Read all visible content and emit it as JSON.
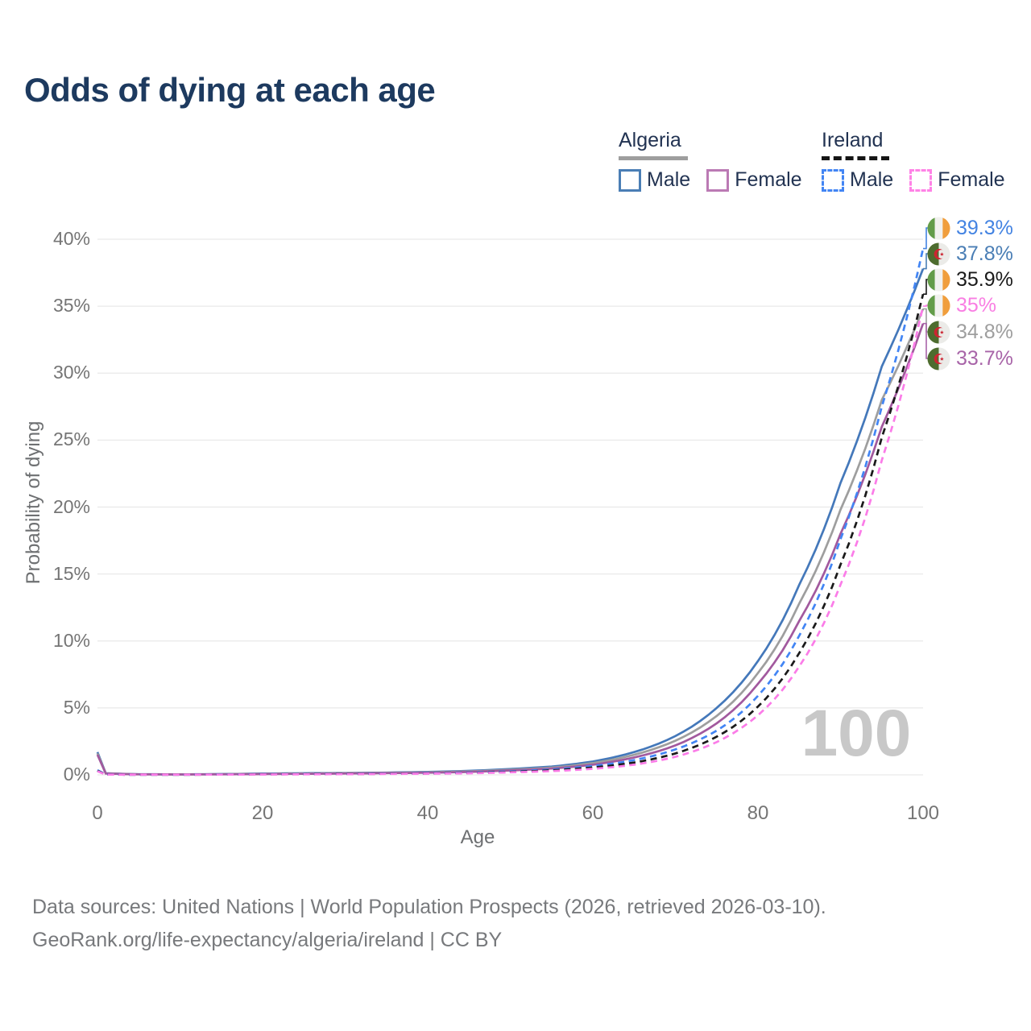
{
  "title": "Odds of dying at each age",
  "legend": {
    "groups": [
      {
        "country": "Algeria",
        "underline_style": "solid",
        "underline_color": "#9e9e9e",
        "items": [
          {
            "label": "Male",
            "color": "#4a7eb5",
            "style": "solid"
          },
          {
            "label": "Female",
            "color": "#bb7ab4",
            "style": "solid"
          }
        ]
      },
      {
        "country": "Ireland",
        "underline_style": "dashed",
        "underline_color": "#151515",
        "items": [
          {
            "label": "Male",
            "color": "#4285f4",
            "style": "dashed"
          },
          {
            "label": "Female",
            "color": "#ff82e6",
            "style": "dashed"
          }
        ]
      }
    ]
  },
  "chart_data": {
    "type": "line",
    "title": "Odds of dying at each age",
    "xlabel": "Age",
    "ylabel": "Probability of dying",
    "xlim": [
      0,
      100
    ],
    "ylim": [
      0,
      40
    ],
    "x_ticks": [
      0,
      20,
      40,
      60,
      80,
      100
    ],
    "y_ticks": [
      {
        "value": 0,
        "label": "0%"
      },
      {
        "value": 5,
        "label": "5%"
      },
      {
        "value": 10,
        "label": "10%"
      },
      {
        "value": 15,
        "label": "15%"
      },
      {
        "value": 20,
        "label": "20%"
      },
      {
        "value": 25,
        "label": "25%"
      },
      {
        "value": 30,
        "label": "30%"
      },
      {
        "value": 35,
        "label": "35%"
      },
      {
        "value": 40,
        "label": "40%"
      }
    ],
    "grid": "horizontal",
    "age_annotation": "100",
    "series": [
      {
        "name": "Algeria Male",
        "country": "algeria",
        "sex": "male",
        "style": "solid",
        "color": "#4478ba",
        "label_color": "#4a7eb5",
        "end_value": 37.8,
        "end_label": "37.8%",
        "points": [
          [
            0,
            1.7
          ],
          [
            1,
            0.12
          ],
          [
            5,
            0.05
          ],
          [
            10,
            0.04
          ],
          [
            15,
            0.06
          ],
          [
            20,
            0.1
          ],
          [
            25,
            0.12
          ],
          [
            30,
            0.14
          ],
          [
            35,
            0.17
          ],
          [
            40,
            0.22
          ],
          [
            45,
            0.3
          ],
          [
            50,
            0.44
          ],
          [
            55,
            0.62
          ],
          [
            60,
            1.0
          ],
          [
            65,
            1.7
          ],
          [
            70,
            2.9
          ],
          [
            75,
            5.0
          ],
          [
            80,
            8.5
          ],
          [
            85,
            14.2
          ],
          [
            90,
            21.8
          ],
          [
            95,
            30.5
          ],
          [
            100,
            37.8
          ]
        ]
      },
      {
        "name": "Algeria",
        "country": "algeria",
        "sex": "both",
        "style": "solid",
        "color": "#9e9e9e",
        "label_color": "#9e9e9e",
        "end_value": 34.8,
        "end_label": "34.8%",
        "points": [
          [
            0,
            1.6
          ],
          [
            1,
            0.11
          ],
          [
            5,
            0.045
          ],
          [
            10,
            0.035
          ],
          [
            15,
            0.05
          ],
          [
            20,
            0.08
          ],
          [
            25,
            0.1
          ],
          [
            30,
            0.12
          ],
          [
            35,
            0.15
          ],
          [
            40,
            0.19
          ],
          [
            45,
            0.26
          ],
          [
            50,
            0.38
          ],
          [
            55,
            0.54
          ],
          [
            60,
            0.88
          ],
          [
            65,
            1.5
          ],
          [
            70,
            2.55
          ],
          [
            75,
            4.4
          ],
          [
            80,
            7.6
          ],
          [
            85,
            12.8
          ],
          [
            90,
            19.8
          ],
          [
            95,
            28.0
          ],
          [
            100,
            34.8
          ]
        ]
      },
      {
        "name": "Algeria Female",
        "country": "algeria",
        "sex": "female",
        "style": "solid",
        "color": "#a2599e",
        "label_color": "#a864a8",
        "end_value": 33.7,
        "end_label": "33.7%",
        "points": [
          [
            0,
            1.5
          ],
          [
            1,
            0.1
          ],
          [
            5,
            0.04
          ],
          [
            10,
            0.03
          ],
          [
            15,
            0.04
          ],
          [
            20,
            0.06
          ],
          [
            25,
            0.08
          ],
          [
            30,
            0.1
          ],
          [
            35,
            0.13
          ],
          [
            40,
            0.16
          ],
          [
            45,
            0.22
          ],
          [
            50,
            0.33
          ],
          [
            55,
            0.47
          ],
          [
            60,
            0.76
          ],
          [
            65,
            1.3
          ],
          [
            70,
            2.2
          ],
          [
            75,
            3.85
          ],
          [
            80,
            6.8
          ],
          [
            85,
            11.5
          ],
          [
            90,
            18.0
          ],
          [
            95,
            26.0
          ],
          [
            100,
            33.7
          ]
        ]
      },
      {
        "name": "Ireland Male",
        "country": "ireland",
        "sex": "male",
        "style": "dashed",
        "color": "#4285f4",
        "label_color": "#4383e2",
        "end_value": 39.3,
        "end_label": "39.3%",
        "points": [
          [
            0,
            0.35
          ],
          [
            1,
            0.03
          ],
          [
            5,
            0.01
          ],
          [
            10,
            0.01
          ],
          [
            15,
            0.03
          ],
          [
            20,
            0.05
          ],
          [
            25,
            0.06
          ],
          [
            30,
            0.07
          ],
          [
            35,
            0.09
          ],
          [
            40,
            0.12
          ],
          [
            45,
            0.17
          ],
          [
            50,
            0.26
          ],
          [
            55,
            0.4
          ],
          [
            60,
            0.66
          ],
          [
            65,
            1.1
          ],
          [
            70,
            1.9
          ],
          [
            75,
            3.3
          ],
          [
            80,
            5.9
          ],
          [
            85,
            10.4
          ],
          [
            90,
            17.6
          ],
          [
            95,
            27.5
          ],
          [
            100,
            39.3
          ]
        ]
      },
      {
        "name": "Ireland",
        "country": "ireland",
        "sex": "both",
        "style": "dashed",
        "color": "#1a1a1a",
        "label_color": "#1a1a1a",
        "end_value": 35.9,
        "end_label": "35.9%",
        "points": [
          [
            0,
            0.3
          ],
          [
            1,
            0.025
          ],
          [
            5,
            0.01
          ],
          [
            10,
            0.01
          ],
          [
            15,
            0.02
          ],
          [
            20,
            0.04
          ],
          [
            25,
            0.05
          ],
          [
            30,
            0.06
          ],
          [
            35,
            0.08
          ],
          [
            40,
            0.1
          ],
          [
            45,
            0.14
          ],
          [
            50,
            0.22
          ],
          [
            55,
            0.34
          ],
          [
            60,
            0.55
          ],
          [
            65,
            0.92
          ],
          [
            70,
            1.6
          ],
          [
            75,
            2.85
          ],
          [
            80,
            5.1
          ],
          [
            85,
            9.1
          ],
          [
            90,
            15.7
          ],
          [
            95,
            25.2
          ],
          [
            100,
            35.9
          ]
        ]
      },
      {
        "name": "Ireland Female",
        "country": "ireland",
        "sex": "female",
        "style": "dashed",
        "color": "#fb7ce8",
        "label_color": "#f97ee3",
        "end_value": 35.0,
        "end_label": "35%",
        "points": [
          [
            0,
            0.27
          ],
          [
            1,
            0.02
          ],
          [
            5,
            0.01
          ],
          [
            10,
            0.01
          ],
          [
            15,
            0.02
          ],
          [
            20,
            0.03
          ],
          [
            25,
            0.04
          ],
          [
            30,
            0.05
          ],
          [
            35,
            0.07
          ],
          [
            40,
            0.09
          ],
          [
            45,
            0.12
          ],
          [
            50,
            0.19
          ],
          [
            55,
            0.28
          ],
          [
            60,
            0.45
          ],
          [
            65,
            0.76
          ],
          [
            70,
            1.35
          ],
          [
            75,
            2.45
          ],
          [
            80,
            4.45
          ],
          [
            85,
            8.1
          ],
          [
            90,
            14.2
          ],
          [
            95,
            23.5
          ],
          [
            100,
            35.0
          ]
        ]
      }
    ],
    "flag_colors": {
      "ireland": {
        "green": "#639c49",
        "white": "#f1f1ee",
        "orange": "#f09e3d"
      },
      "algeria": {
        "green": "#4d6c2e",
        "white": "#ebebe8",
        "red": "#cc2431"
      }
    },
    "grid_color": "#e9e9e9"
  },
  "footer": {
    "line1": "Data sources: United Nations | World Population Prospects (2026, retrieved 2026-03-10).",
    "line2": "GeoRank.org/life-expectancy/algeria/ireland | CC BY"
  }
}
